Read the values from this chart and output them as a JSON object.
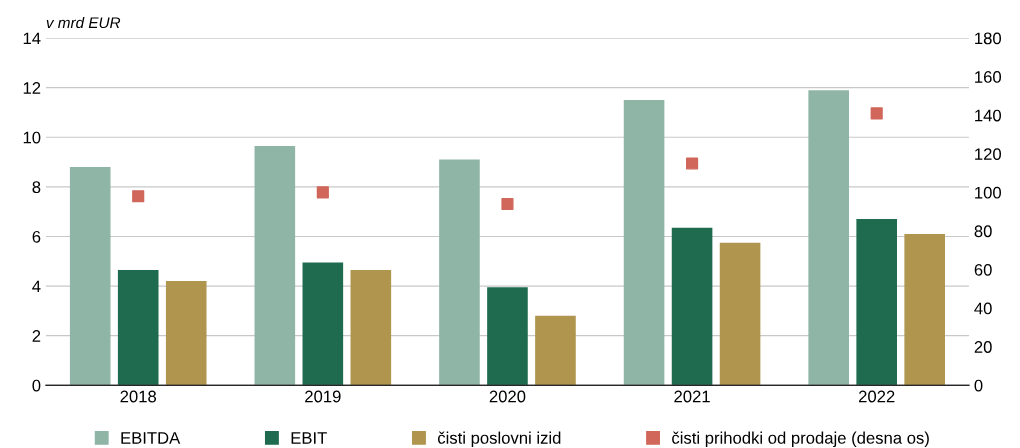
{
  "chart_data": {
    "type": "bar",
    "ylabel": "v mrd EUR",
    "categories": [
      "2018",
      "2019",
      "2020",
      "2021",
      "2022"
    ],
    "series": [
      {
        "name": "EBITDA",
        "color": "#8fb5a6",
        "values": [
          8.8,
          9.65,
          9.1,
          11.5,
          11.9
        ]
      },
      {
        "name": "EBIT",
        "color": "#1f6b50",
        "values": [
          4.65,
          4.95,
          3.95,
          6.35,
          6.7
        ]
      },
      {
        "name": "čisti poslovni izid",
        "color": "#b0954e",
        "values": [
          4.2,
          4.65,
          2.8,
          5.75,
          6.1
        ]
      },
      {
        "name": "čisti prihodki od prodaje (desna os)",
        "color": "#d0675a",
        "type": "scatter",
        "axis": "y2",
        "marker": "square",
        "values": [
          98,
          100,
          94,
          115,
          141
        ]
      }
    ],
    "ylim": [
      0,
      14
    ],
    "yticks": [
      0,
      2,
      4,
      6,
      8,
      10,
      12,
      14
    ],
    "y2lim": [
      0,
      180
    ],
    "y2ticks": [
      0,
      20,
      40,
      60,
      80,
      100,
      120,
      140,
      160,
      180
    ],
    "grid": "y",
    "legend": "bottom"
  }
}
